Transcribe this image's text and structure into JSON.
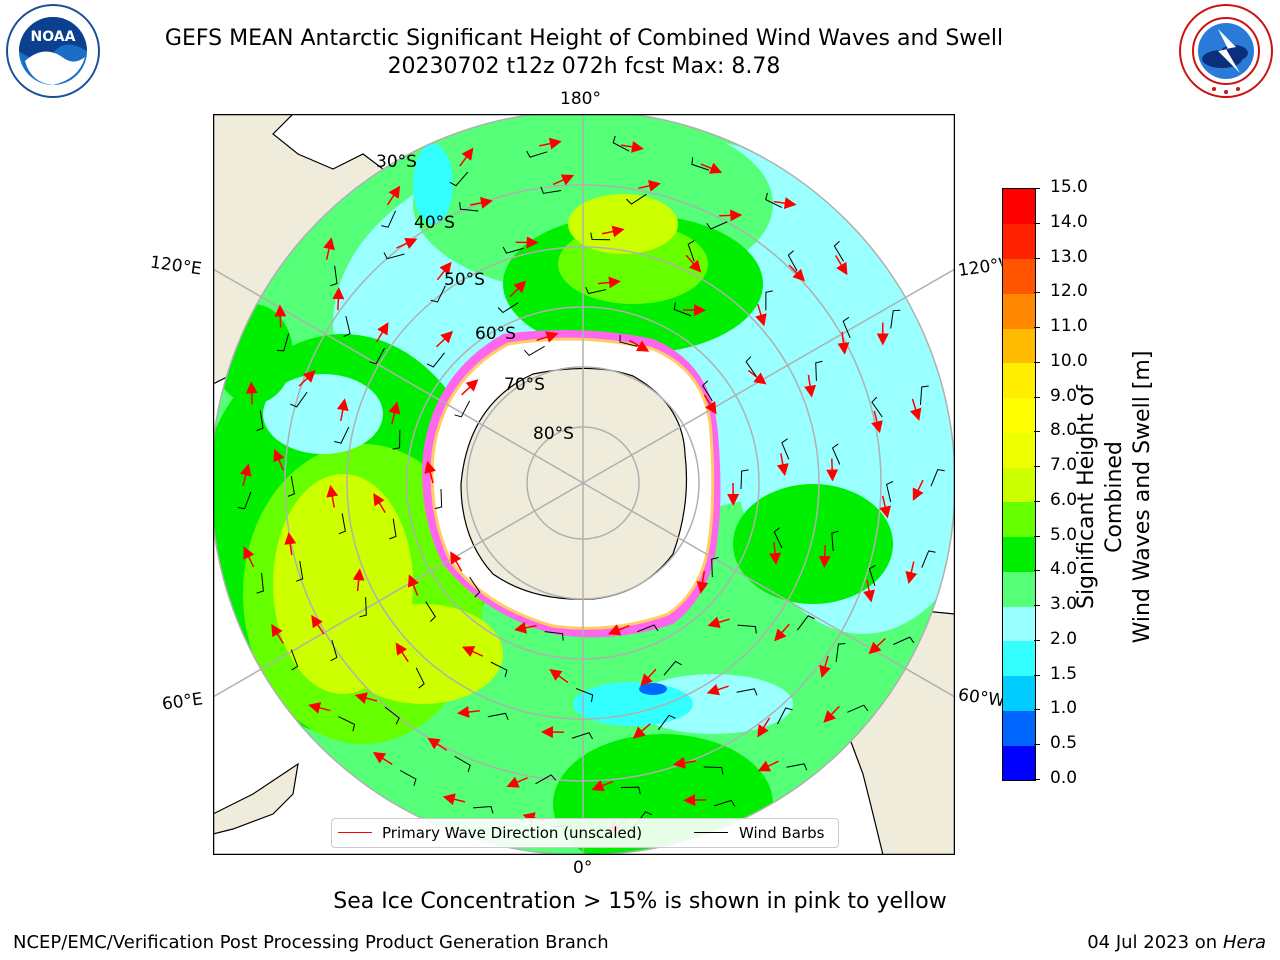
{
  "header": {
    "title_line1": "GEFS MEAN Antarctic Significant Height of Combined Wind Waves and Swell",
    "title_line2": "20230702 t12z 072h fcst   Max: 8.78",
    "left_logo": "NOAA",
    "left_logo_ring_text": "NATIONAL OCEANIC AND ATMOSPHERIC ADMINISTRATION U.S. DEPARTMENT OF COMMERCE",
    "right_logo_ring_text": "NATIONAL WEATHER SERVICE"
  },
  "map": {
    "projection": "south-polar-stereographic",
    "longitude_labels": {
      "top": "180°",
      "bottom": "0°",
      "upper_left": "120°E",
      "lower_left": "60°E",
      "upper_right": "120°W",
      "lower_right": "60°W"
    },
    "latitude_labels": [
      "30°S",
      "40°S",
      "50°S",
      "60°S",
      "70°S",
      "80°S"
    ],
    "colors": {
      "land": "#efecdc",
      "sea_ice": "#ffffff",
      "ice_edge": "#ff44ee",
      "graticule": "#b0b0b0",
      "wave_arrow": "#ff0000",
      "wind_barb": "#000000"
    }
  },
  "legend": {
    "primary_wave": "Primary Wave Direction (unscaled)",
    "wind_barbs": "Wind Barbs"
  },
  "colorbar": {
    "label_line1": "Significant Height of Combined",
    "label_line2": "Wind Waves and Swell [m]",
    "ticks": [
      "0.0",
      "0.5",
      "1.0",
      "1.5",
      "2.0",
      "3.0",
      "4.0",
      "5.0",
      "6.0",
      "7.0",
      "8.0",
      "9.0",
      "10.0",
      "11.0",
      "12.0",
      "13.0",
      "14.0",
      "15.0"
    ],
    "colors": [
      "#0000ff",
      "#0066ff",
      "#00ccff",
      "#33ffff",
      "#99ffff",
      "#55ff77",
      "#00ee00",
      "#66ff00",
      "#ccff00",
      "#eeff00",
      "#ffff00",
      "#ffee00",
      "#ffbb00",
      "#ff8800",
      "#ff5500",
      "#ff2200",
      "#ff0000"
    ]
  },
  "chart_data": {
    "type": "heatmap",
    "title": "GEFS MEAN Antarctic Significant Height of Combined Wind Waves and Swell",
    "max_value": 8.78,
    "units": "m"
  },
  "notes": {
    "sea_ice": "Sea Ice Concentration > 15% is shown in pink to yellow"
  },
  "footer": {
    "left": "NCEP/EMC/Verification Post Processing Product Generation Branch",
    "right_date": "04 Jul 2023 on",
    "right_machine": "Hera"
  }
}
